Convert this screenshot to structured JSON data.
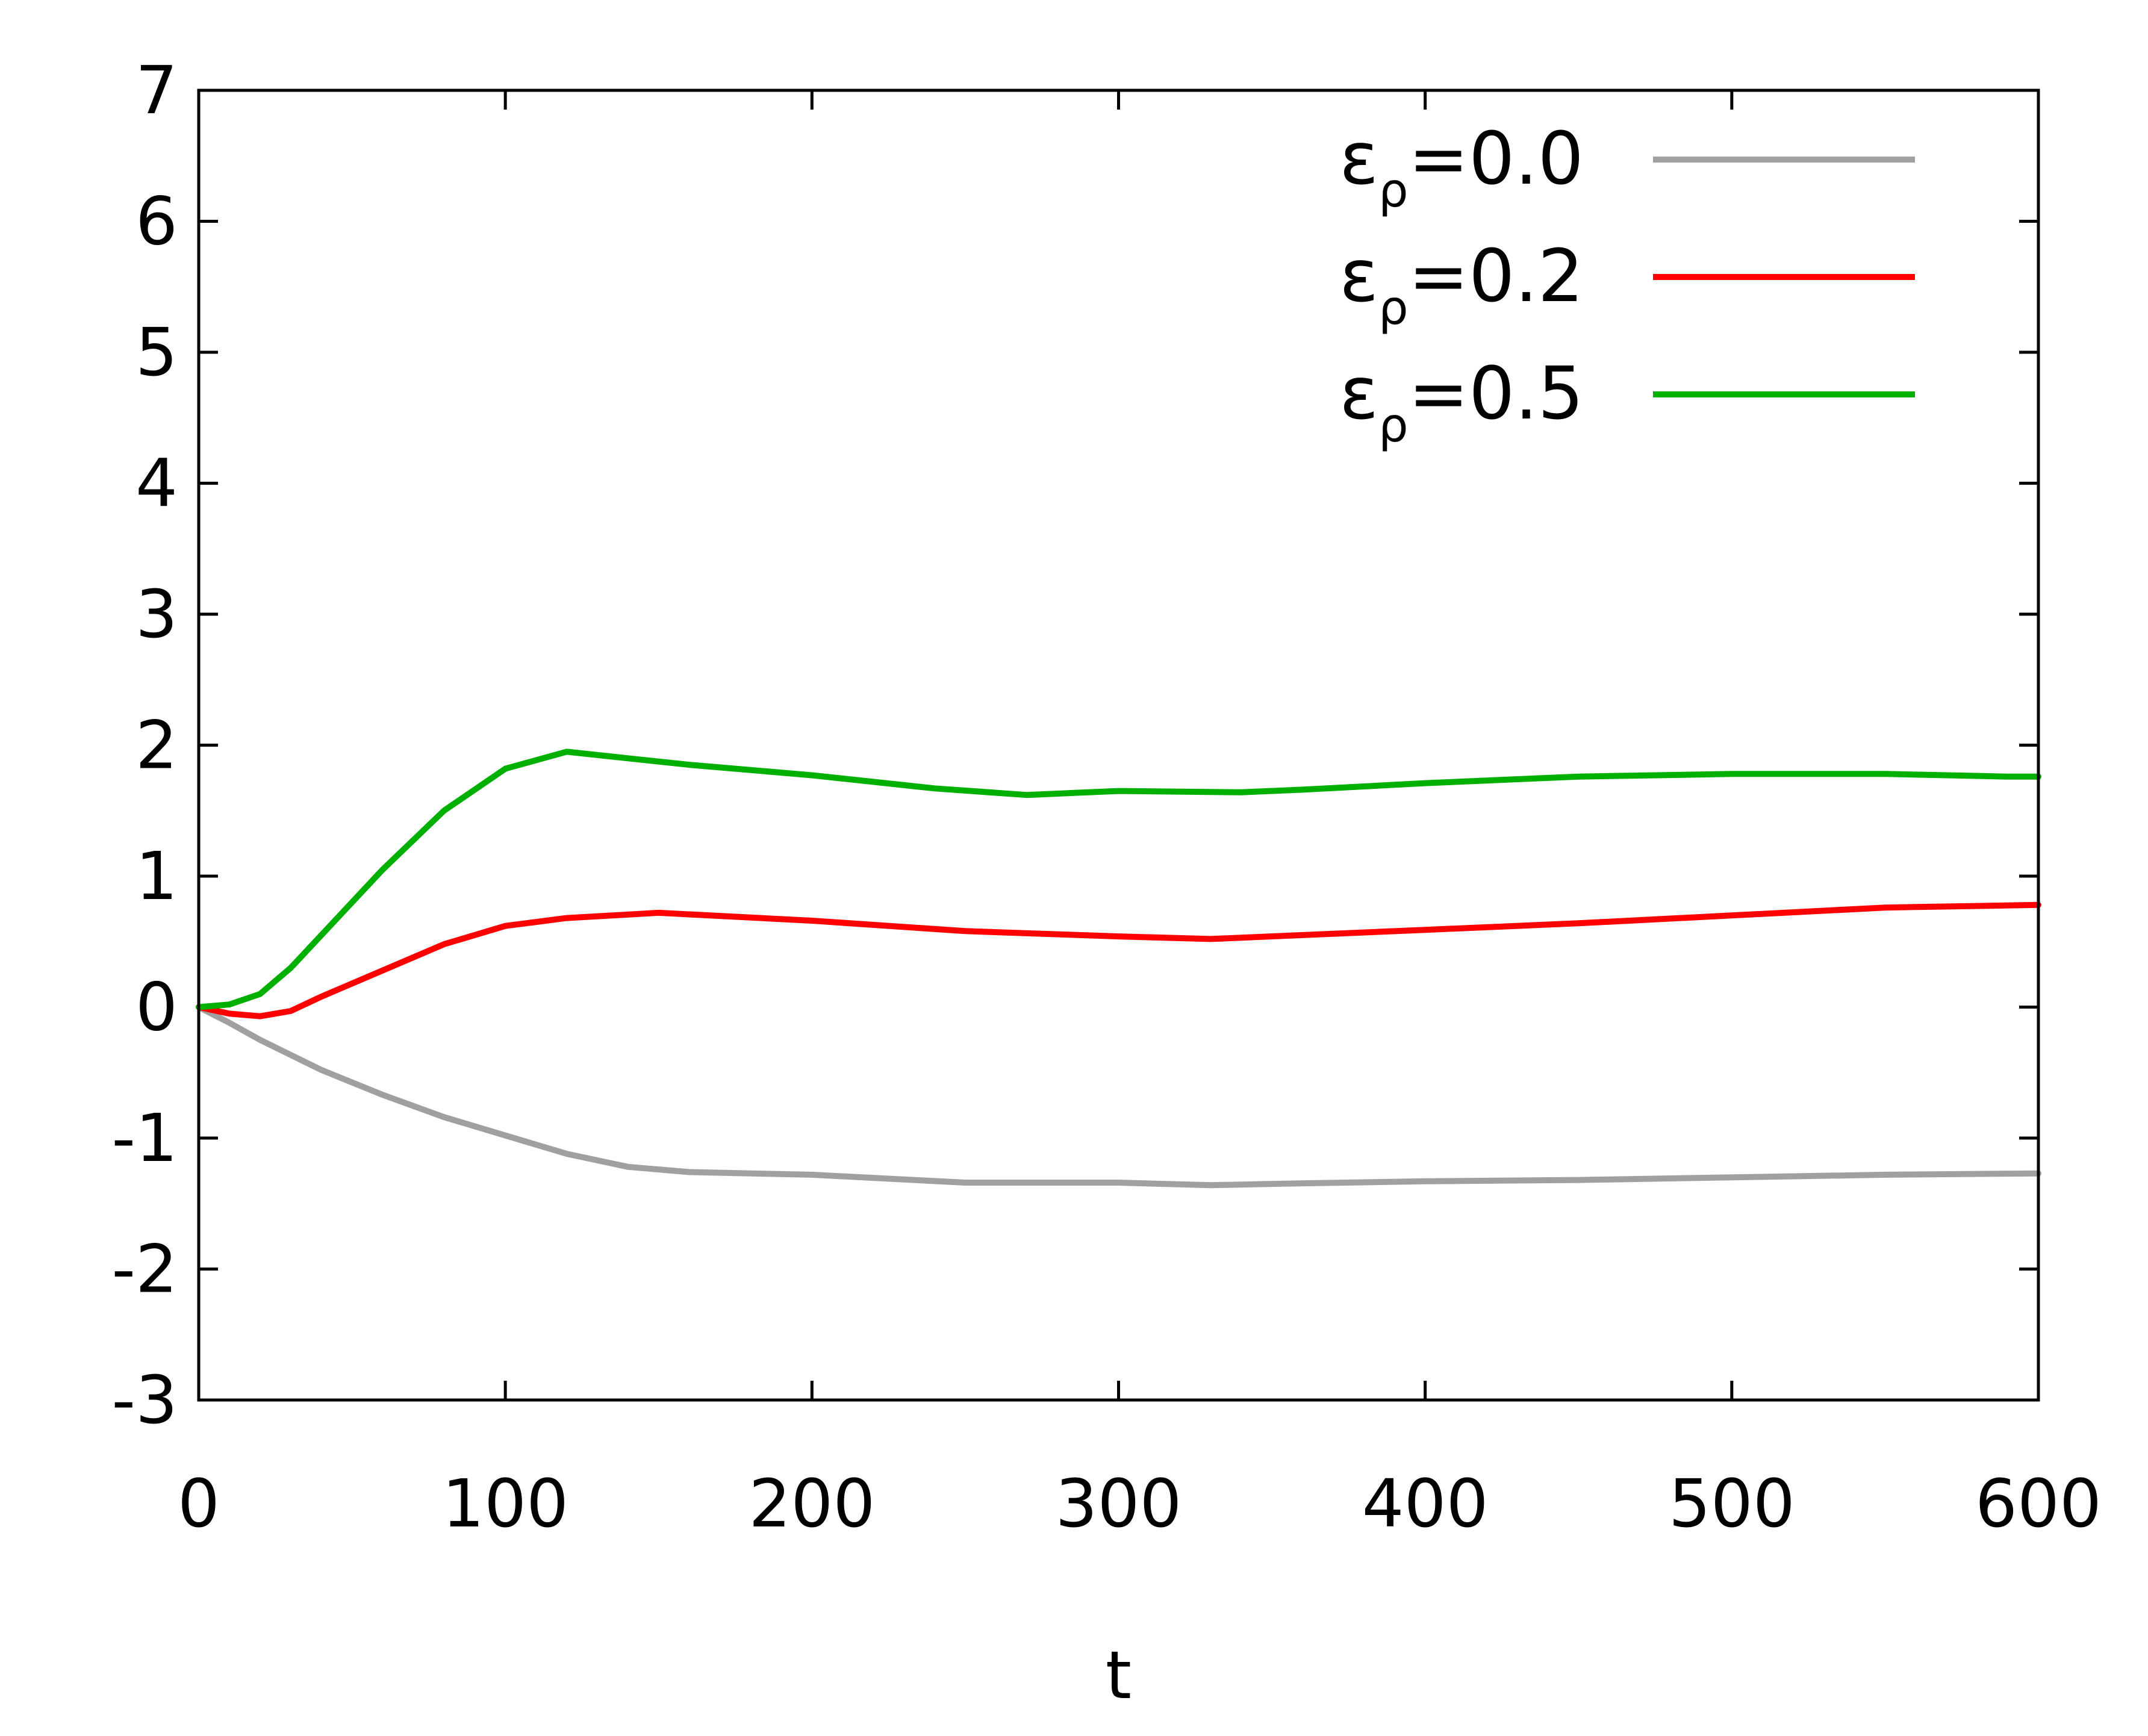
{
  "chart_data": {
    "type": "line",
    "title": "",
    "xlabel": "t",
    "ylabel": "",
    "xlim": [
      0,
      600
    ],
    "ylim": [
      -3,
      7
    ],
    "xticks": [
      0,
      100,
      200,
      300,
      400,
      500,
      600
    ],
    "yticks": [
      -3,
      -2,
      -1,
      0,
      1,
      2,
      3,
      4,
      5,
      6,
      7
    ],
    "grid": false,
    "legend_position": "top-right",
    "series": [
      {
        "name": "ερ=0.0",
        "label_main": "ε",
        "label_sub": "ρ",
        "label_rest": "=0.0",
        "color": "#a0a0a0",
        "x": [
          0,
          10,
          20,
          40,
          60,
          80,
          100,
          120,
          140,
          160,
          200,
          250,
          300,
          330,
          350,
          400,
          450,
          500,
          550,
          600
        ],
        "y": [
          0,
          -0.12,
          -0.25,
          -0.48,
          -0.67,
          -0.84,
          -0.98,
          -1.12,
          -1.22,
          -1.26,
          -1.28,
          -1.34,
          -1.34,
          -1.36,
          -1.35,
          -1.33,
          -1.32,
          -1.3,
          -1.28,
          -1.27
        ]
      },
      {
        "name": "ερ=0.2",
        "label_main": "ε",
        "label_sub": "ρ",
        "label_rest": "=0.2",
        "color": "#ff0000",
        "x": [
          0,
          10,
          20,
          30,
          40,
          60,
          80,
          100,
          120,
          150,
          200,
          250,
          300,
          330,
          360,
          400,
          450,
          500,
          550,
          600
        ],
        "y": [
          0,
          -0.05,
          -0.07,
          -0.03,
          0.08,
          0.28,
          0.48,
          0.62,
          0.68,
          0.72,
          0.66,
          0.58,
          0.54,
          0.52,
          0.55,
          0.59,
          0.64,
          0.7,
          0.76,
          0.78
        ]
      },
      {
        "name": "ερ=0.5",
        "label_main": "ε",
        "label_sub": "ρ",
        "label_rest": "=0.5",
        "color": "#00b000",
        "x": [
          0,
          10,
          20,
          30,
          40,
          60,
          80,
          100,
          120,
          140,
          160,
          200,
          240,
          270,
          300,
          340,
          360,
          400,
          450,
          500,
          550,
          590,
          600
        ],
        "y": [
          0,
          0.02,
          0.1,
          0.3,
          0.55,
          1.05,
          1.5,
          1.82,
          1.95,
          1.9,
          1.85,
          1.77,
          1.67,
          1.62,
          1.65,
          1.64,
          1.66,
          1.71,
          1.76,
          1.78,
          1.78,
          1.76,
          1.76
        ]
      }
    ]
  }
}
